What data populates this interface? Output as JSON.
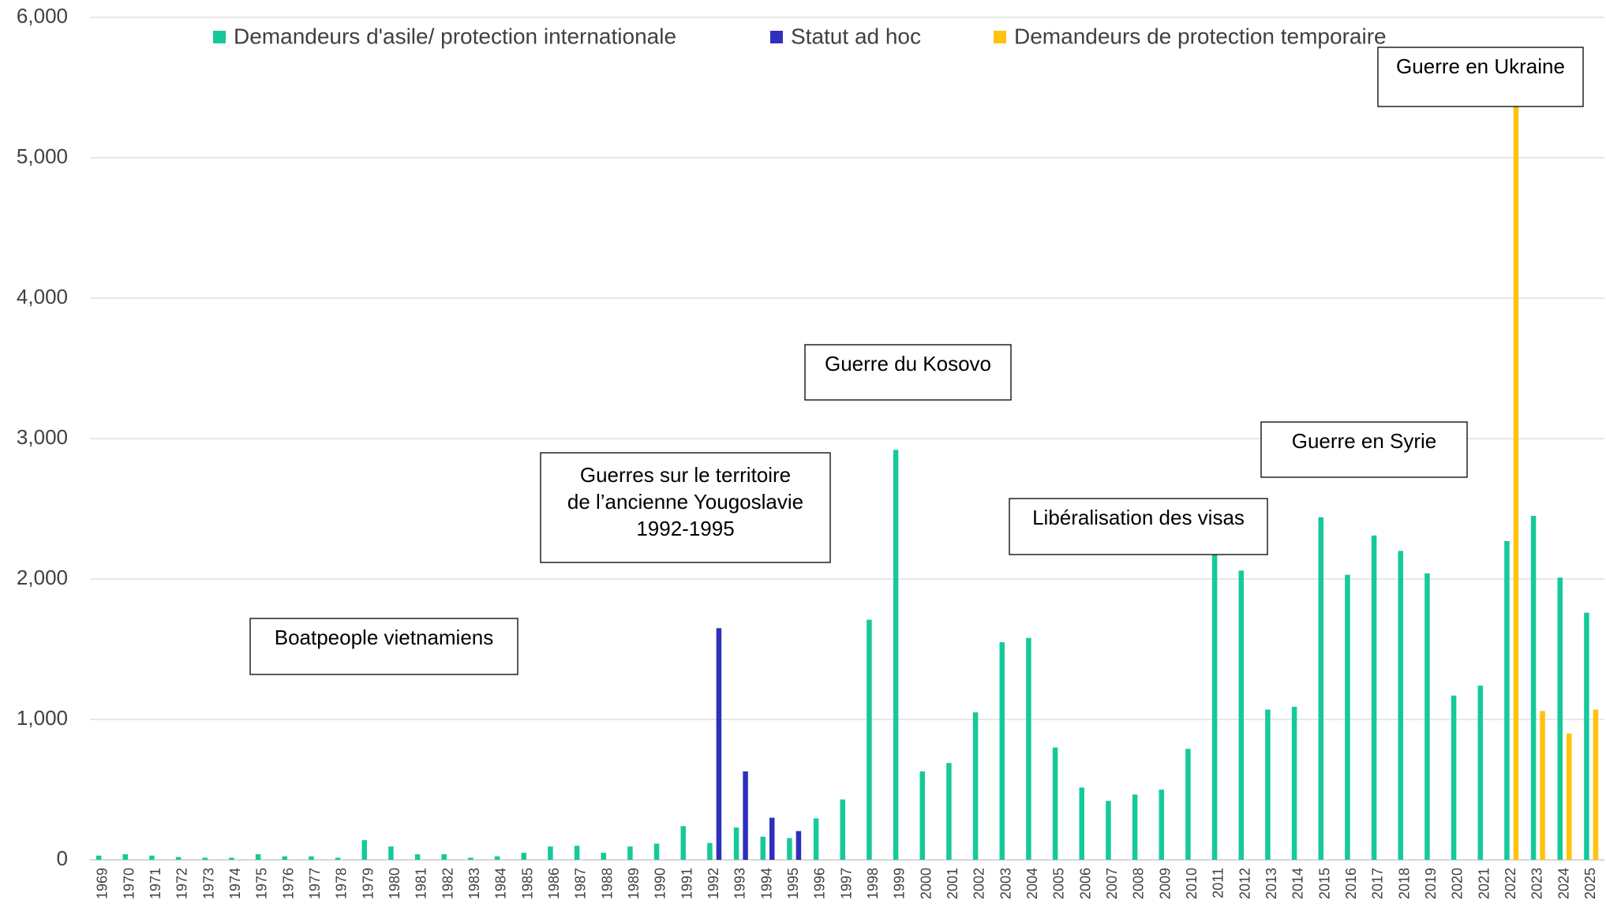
{
  "chart_data": {
    "type": "bar",
    "categories": [
      "1969",
      "1970",
      "1971",
      "1972",
      "1973",
      "1974",
      "1975",
      "1976",
      "1977",
      "1978",
      "1979",
      "1980",
      "1981",
      "1982",
      "1983",
      "1984",
      "1985",
      "1986",
      "1987",
      "1988",
      "1989",
      "1990",
      "1991",
      "1992",
      "1993",
      "1994",
      "1995",
      "1996",
      "1997",
      "1998",
      "1999",
      "2000",
      "2001",
      "2002",
      "2003",
      "2004",
      "2005",
      "2006",
      "2007",
      "2008",
      "2009",
      "2010",
      "2011",
      "2012",
      "2013",
      "2014",
      "2015",
      "2016",
      "2017",
      "2018",
      "2019",
      "2020",
      "2021",
      "2022",
      "2023",
      "2024",
      "2025"
    ],
    "series": [
      {
        "name": "Demandeurs d'asile/ protection internationale",
        "color": "#16c99a",
        "values": [
          30,
          40,
          30,
          20,
          15,
          15,
          40,
          25,
          25,
          15,
          140,
          95,
          40,
          40,
          15,
          25,
          50,
          95,
          100,
          50,
          95,
          115,
          240,
          120,
          230,
          165,
          155,
          295,
          430,
          1710,
          2920,
          630,
          690,
          1050,
          1550,
          1580,
          800,
          515,
          420,
          465,
          500,
          790,
          2200,
          2060,
          1070,
          1090,
          2440,
          2030,
          2310,
          2200,
          2040,
          1170,
          1240,
          2270,
          2450,
          2010,
          1760
        ]
      },
      {
        "name": "Statut ad hoc",
        "color": "#2f2fbf",
        "values": [
          null,
          null,
          null,
          null,
          null,
          null,
          null,
          null,
          null,
          null,
          null,
          null,
          null,
          null,
          null,
          null,
          null,
          null,
          null,
          null,
          null,
          null,
          null,
          1650,
          630,
          300,
          205,
          null,
          null,
          null,
          null,
          null,
          null,
          null,
          null,
          null,
          null,
          null,
          null,
          null,
          null,
          null,
          null,
          null,
          null,
          null,
          null,
          null,
          null,
          null,
          null,
          null,
          null,
          null,
          null,
          null,
          null
        ]
      },
      {
        "name": "Demandeurs de protection temporaire",
        "color": "#ffc20e",
        "values": [
          null,
          null,
          null,
          null,
          null,
          null,
          null,
          null,
          null,
          null,
          null,
          null,
          null,
          null,
          null,
          null,
          null,
          null,
          null,
          null,
          null,
          null,
          null,
          null,
          null,
          null,
          null,
          null,
          null,
          null,
          null,
          null,
          null,
          null,
          null,
          null,
          null,
          null,
          null,
          null,
          null,
          null,
          null,
          null,
          null,
          null,
          null,
          null,
          null,
          null,
          null,
          null,
          null,
          5400,
          1060,
          900,
          1070
        ]
      }
    ],
    "ylim": [
      0,
      6000
    ],
    "yticks": [
      0,
      {
        "value": 1000,
        "label": "1,000"
      },
      {
        "value": 2000,
        "label": "2,000"
      },
      {
        "value": 3000,
        "label": "3,000"
      },
      {
        "value": 4000,
        "label": "4,000"
      },
      {
        "value": 5000,
        "label": "5,000"
      },
      {
        "value": 6000,
        "label": "6,000"
      }
    ],
    "grid": true,
    "legend": "top",
    "annotations": [
      {
        "lines": [
          "Boatpeople vietnamiens"
        ]
      },
      {
        "lines": [
          "Guerres sur le territoire",
          "de l’ancienne Yougoslavie",
          "1992-1995"
        ]
      },
      {
        "lines": [
          "Guerre du Kosovo"
        ]
      },
      {
        "lines": [
          "Libéralisation des visas"
        ]
      },
      {
        "lines": [
          "Guerre en Syrie"
        ]
      },
      {
        "lines": [
          "Guerre en Ukraine"
        ]
      }
    ]
  }
}
